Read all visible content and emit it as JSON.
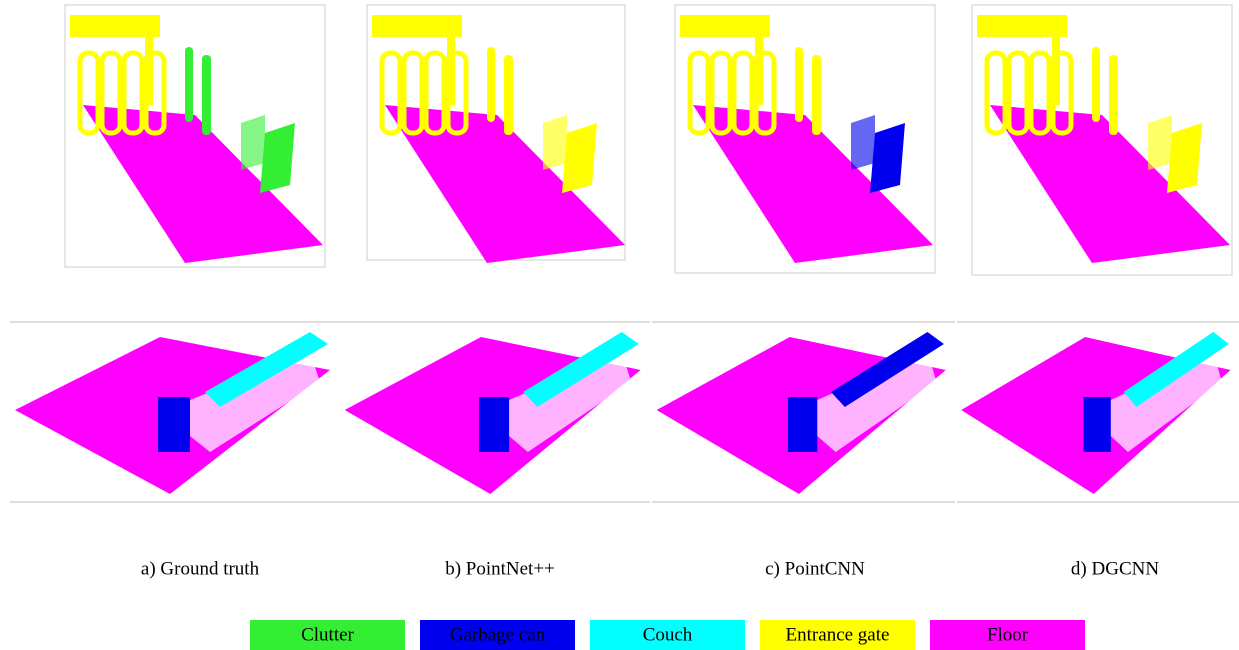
{
  "captions": [
    "a) Ground truth",
    "b) PointNet++",
    "c) PointCNN",
    "d) DGCNN"
  ],
  "legend": [
    {
      "label": "Clutter",
      "color": "#33ee33"
    },
    {
      "label": "Garbage can",
      "color": "#0000ee"
    },
    {
      "label": "Couch",
      "color": "#00ffff"
    },
    {
      "label": "Entrance gate",
      "color": "#ffff00"
    },
    {
      "label": "Floor",
      "color": "#ff00ff"
    }
  ]
}
